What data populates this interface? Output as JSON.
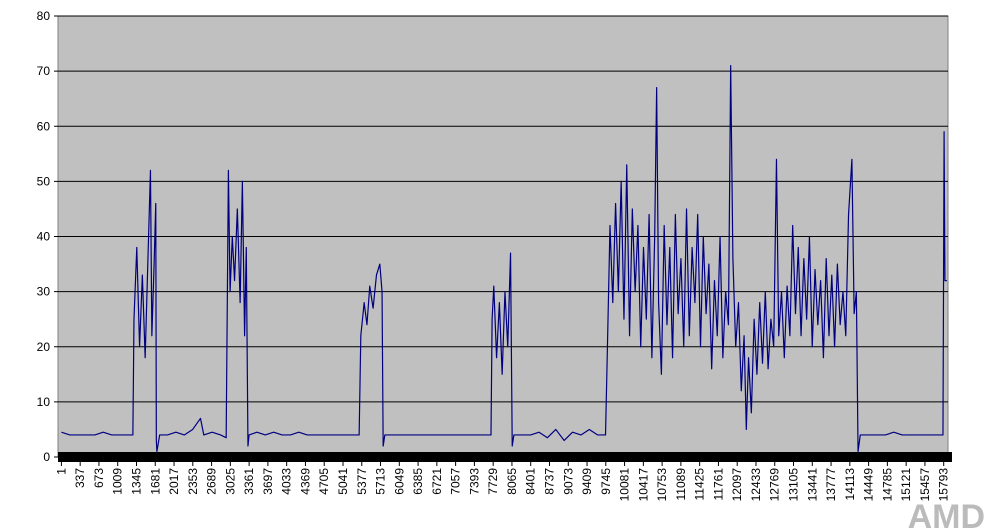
{
  "chart_data": {
    "type": "line",
    "x": [
      1,
      150,
      300,
      450,
      600,
      750,
      900,
      1050,
      1200,
      1280,
      1300,
      1350,
      1400,
      1450,
      1500,
      1550,
      1595,
      1620,
      1660,
      1690,
      1700,
      1710,
      1760,
      1900,
      2050,
      2200,
      2350,
      2490,
      2550,
      2700,
      2850,
      2950,
      2990,
      3020,
      3060,
      3100,
      3150,
      3200,
      3240,
      3280,
      3310,
      3340,
      3360,
      3500,
      3650,
      3800,
      3950,
      4100,
      4250,
      4400,
      4550,
      4700,
      4850,
      5000,
      5200,
      5330,
      5360,
      5420,
      5470,
      5520,
      5580,
      5640,
      5700,
      5740,
      5760,
      5790,
      5950,
      6100,
      6250,
      6400,
      6550,
      6700,
      6850,
      7000,
      7150,
      7300,
      7450,
      7600,
      7690,
      7710,
      7740,
      7790,
      7840,
      7890,
      7940,
      7990,
      8040,
      8070,
      8100,
      8250,
      8400,
      8550,
      8700,
      8850,
      9000,
      9150,
      9300,
      9450,
      9600,
      9740,
      9770,
      9820,
      9870,
      9920,
      9970,
      10020,
      10070,
      10120,
      10170,
      10220,
      10270,
      10320,
      10370,
      10420,
      10470,
      10520,
      10570,
      10620,
      10655,
      10690,
      10740,
      10790,
      10840,
      10890,
      10940,
      10990,
      11040,
      11090,
      11140,
      11190,
      11240,
      11290,
      11340,
      11390,
      11440,
      11490,
      11540,
      11590,
      11640,
      11690,
      11740,
      11790,
      11840,
      11890,
      11940,
      11980,
      12020,
      12070,
      12120,
      12170,
      12220,
      12260,
      12300,
      12350,
      12400,
      12450,
      12500,
      12550,
      12600,
      12650,
      12700,
      12750,
      12800,
      12840,
      12890,
      12940,
      12990,
      13040,
      13090,
      13140,
      13190,
      13240,
      13290,
      13340,
      13390,
      13440,
      13490,
      13540,
      13590,
      13640,
      13690,
      13740,
      13790,
      13840,
      13890,
      13940,
      13990,
      14040,
      14090,
      14150,
      14190,
      14230,
      14260,
      14300,
      14450,
      14600,
      14750,
      14900,
      15050,
      15200,
      15350,
      15500,
      15650,
      15780,
      15800,
      15815,
      15850
    ],
    "series": [
      {
        "color": "#000080",
        "values": [
          4.5,
          4,
          4,
          4,
          4,
          4.5,
          4,
          4,
          4,
          4,
          25,
          38,
          20,
          33,
          18,
          36,
          52,
          22,
          35,
          46,
          3,
          1,
          4,
          4,
          4.5,
          4,
          5,
          7,
          4,
          4.5,
          4,
          3.5,
          52,
          30,
          40,
          32,
          45,
          28,
          50,
          22,
          38,
          2,
          4,
          4.5,
          4,
          4.5,
          4,
          4,
          4.5,
          4,
          4,
          4,
          4,
          4,
          4,
          4,
          22,
          28,
          24,
          31,
          27,
          33,
          35,
          30,
          2,
          4,
          4,
          4,
          4,
          4,
          4,
          4,
          4,
          4,
          4,
          4,
          4,
          4,
          4,
          25,
          31,
          18,
          28,
          15,
          30,
          20,
          37,
          2,
          4,
          4,
          4,
          4.5,
          3.5,
          5,
          3,
          4.5,
          4,
          5,
          4,
          4,
          18,
          42,
          28,
          46,
          30,
          50,
          25,
          53,
          22,
          45,
          30,
          42,
          20,
          38,
          25,
          44,
          18,
          40,
          67,
          28,
          15,
          42,
          24,
          38,
          18,
          44,
          26,
          36,
          20,
          45,
          22,
          38,
          28,
          44,
          20,
          40,
          26,
          35,
          16,
          32,
          22,
          40,
          18,
          30,
          24,
          71,
          36,
          20,
          28,
          12,
          22,
          5,
          18,
          8,
          25,
          15,
          28,
          17,
          30,
          16,
          25,
          20,
          54,
          22,
          30,
          18,
          31,
          22,
          42,
          26,
          38,
          22,
          36,
          25,
          40,
          20,
          34,
          24,
          32,
          18,
          36,
          22,
          33,
          20,
          35,
          24,
          30,
          22,
          44,
          54,
          26,
          30,
          1,
          4,
          4,
          4,
          4,
          4.5,
          4,
          4,
          4,
          4,
          4,
          4,
          59,
          32,
          32
        ]
      }
    ],
    "xlim": [
      -60,
      15870
    ],
    "xticks": [
      1,
      337,
      673,
      1009,
      1345,
      1681,
      2017,
      2353,
      2689,
      3025,
      3361,
      3697,
      4033,
      4369,
      4705,
      5041,
      5377,
      5713,
      6049,
      6385,
      6721,
      7057,
      7393,
      7729,
      8065,
      8401,
      8737,
      9073,
      9409,
      9745,
      10081,
      10417,
      10753,
      11089,
      11425,
      11761,
      12097,
      12433,
      12769,
      13105,
      13441,
      13777,
      14113,
      14449,
      14785,
      15121,
      15457,
      15793
    ],
    "ylim": [
      0,
      80
    ],
    "yticks": [
      0,
      10,
      20,
      30,
      40,
      50,
      60,
      70,
      80
    ],
    "grid": true,
    "background": "#c0c0c0",
    "watermark": "AMD"
  }
}
